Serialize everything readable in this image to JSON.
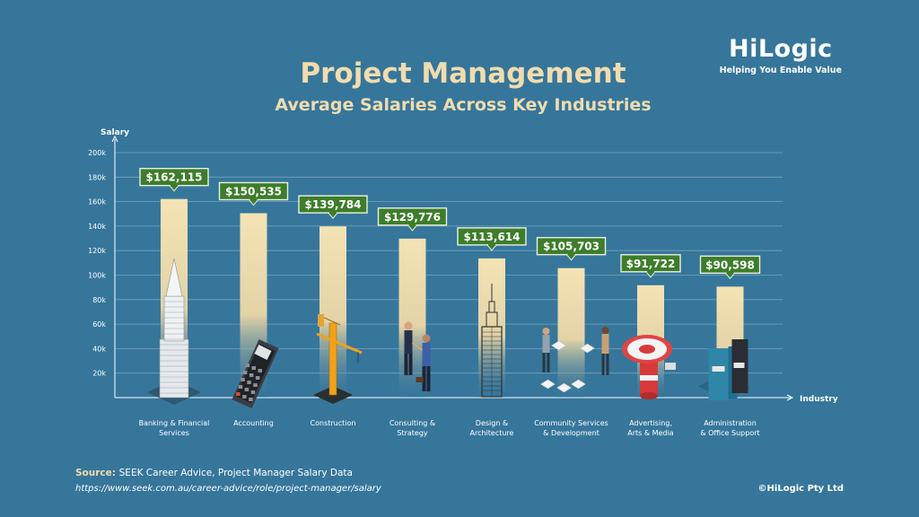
{
  "logo": {
    "name": "HiLogic",
    "tagline": "Helping You Enable Value"
  },
  "header": {
    "title": "Project Management",
    "subtitle": "Average Salaries Across Key Industries"
  },
  "chart_data": {
    "type": "bar",
    "title": "Project Management",
    "subtitle": "Average Salaries Across Key Industries",
    "ylabel": "Salary",
    "xlabel": "Industry",
    "ylim": [
      0,
      200000
    ],
    "grid": true,
    "yticks": [
      {
        "value": 20000,
        "label": "20k"
      },
      {
        "value": 40000,
        "label": "40k"
      },
      {
        "value": 60000,
        "label": "60k"
      },
      {
        "value": 80000,
        "label": "80k"
      },
      {
        "value": 100000,
        "label": "100k"
      },
      {
        "value": 120000,
        "label": "120k"
      },
      {
        "value": 140000,
        "label": "140k"
      },
      {
        "value": 160000,
        "label": "160k"
      },
      {
        "value": 180000,
        "label": "180k"
      },
      {
        "value": 200000,
        "label": "200k"
      }
    ],
    "categories": [
      [
        "Banking & Financial",
        "Services"
      ],
      [
        "Accounting"
      ],
      [
        "Construction"
      ],
      [
        "Consulting &",
        "Strategy"
      ],
      [
        "Design &",
        "Architecture"
      ],
      [
        "Community Services",
        "& Development"
      ],
      [
        "Advertising,",
        "Arts & Media"
      ],
      [
        "Administration",
        "& Office Support"
      ]
    ],
    "values": [
      162115,
      150535,
      139784,
      129776,
      113614,
      105703,
      91722,
      90598
    ],
    "data_labels": [
      "$162,115",
      "$150,535",
      "$139,784",
      "$129,776",
      "$113,614",
      "$105,703",
      "$91,722",
      "$90,598"
    ],
    "icons": [
      "skyscraper-icon",
      "calculator-icon",
      "crane-icon",
      "handshake-icon",
      "tower-icon",
      "puzzle-team-icon",
      "megaphone-icon",
      "binders-icon"
    ]
  },
  "footer": {
    "source_label": "Source:",
    "source_text": "SEEK Career Advice, Project Manager Salary Data",
    "url": "https://www.seek.com.au/career-advice/role/project-manager/salary",
    "copyright": "©HiLogic Pty Ltd"
  },
  "colors": {
    "background": "#36769b",
    "title": "#f0dcae",
    "label_box": "#3e7d2b",
    "bar_top": "#f3e3b5",
    "bar_bottom": "#36769b"
  }
}
